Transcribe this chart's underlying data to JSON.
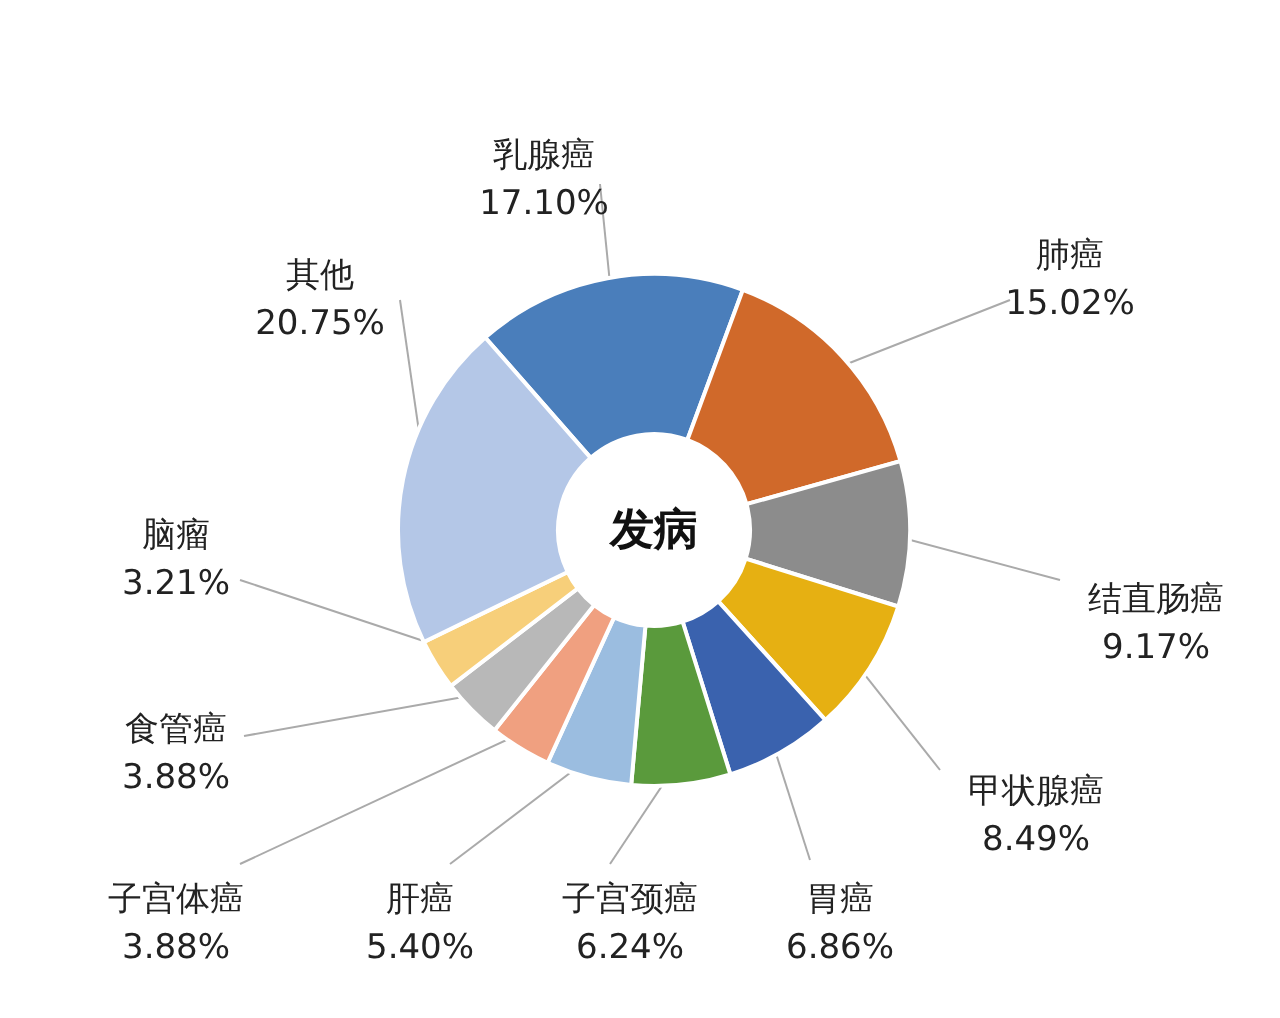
{
  "chart_data": {
    "type": "donut",
    "annotations": [
      "发病"
    ],
    "categories": [
      "乳腺癌",
      "肺癌",
      "结直肠癌",
      "甲状腺癌",
      "胃癌",
      "子宫颈癌",
      "肝癌",
      "子宫体癌",
      "食管癌",
      "脑瘤",
      "其他"
    ],
    "values": [
      17.1,
      15.02,
      9.17,
      8.49,
      6.86,
      6.24,
      5.4,
      3.88,
      3.88,
      3.21,
      20.75
    ],
    "value_labels": [
      "17.10%",
      "15.02%",
      "9.17%",
      "8.49%",
      "6.86%",
      "6.24%",
      "5.40%",
      "3.88%",
      "3.88%",
      "3.21%",
      "20.75%"
    ],
    "colors": [
      "#4a7ebb",
      "#d0692a",
      "#8c8c8c",
      "#e6b012",
      "#3a62ae",
      "#5a9a3c",
      "#9bbde0",
      "#f0a080",
      "#b8b8b8",
      "#f7cf7a",
      "#b4c7e7"
    ]
  }
}
